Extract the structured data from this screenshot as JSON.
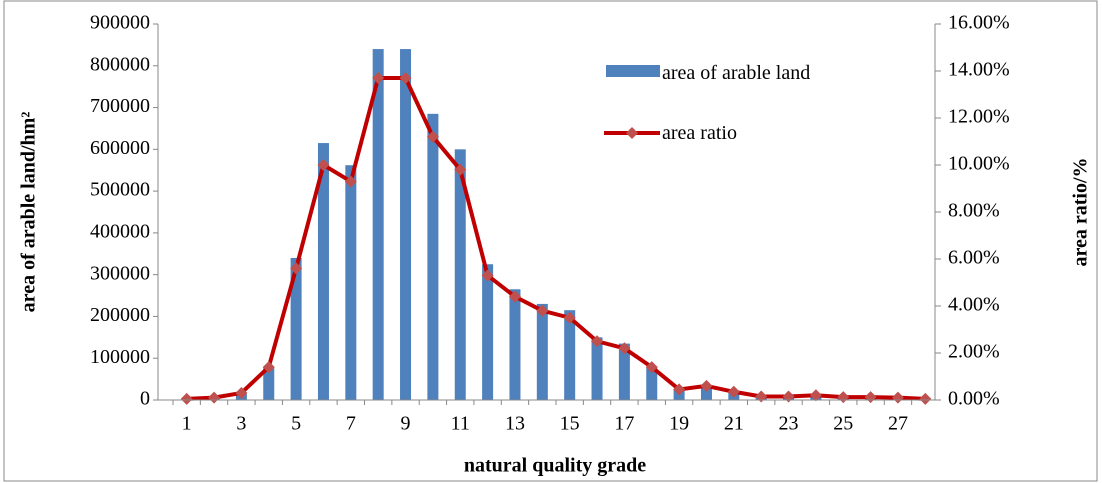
{
  "chart_data": {
    "type": "bar_line",
    "x_label": "natural quality grade",
    "y_label": "area of arable land/hm²",
    "y2_label": "area ratio/%",
    "categories": [
      "1",
      null,
      "3",
      null,
      "5",
      null,
      "7",
      null,
      "9",
      null,
      "11",
      null,
      "13",
      null,
      "15",
      null,
      "17",
      null,
      "19",
      null,
      "21",
      null,
      "23",
      null,
      "25",
      null,
      "27",
      null
    ],
    "series": [
      {
        "name": "area of arable land",
        "type": "bar",
        "color": "#4f81bd",
        "values": [
          2000,
          5000,
          15000,
          80000,
          340000,
          615000,
          562000,
          840000,
          840000,
          685000,
          600000,
          325000,
          265000,
          230000,
          215000,
          150000,
          135000,
          80000,
          25000,
          35000,
          20000,
          10000,
          10000,
          12000,
          8000,
          8000,
          6000,
          2000
        ]
      },
      {
        "name": "area ratio",
        "type": "line",
        "axis": "y2",
        "color": "#c00000",
        "marker_color": "#c0504d",
        "values": [
          0.05,
          0.1,
          0.3,
          1.4,
          5.6,
          10.0,
          9.3,
          13.7,
          13.7,
          11.2,
          9.8,
          5.3,
          4.4,
          3.8,
          3.5,
          2.5,
          2.2,
          1.4,
          0.45,
          0.6,
          0.35,
          0.15,
          0.15,
          0.2,
          0.12,
          0.12,
          0.1,
          0.05
        ]
      }
    ],
    "ylim": [
      0,
      900000
    ],
    "yticks": [
      0,
      100000,
      200000,
      300000,
      400000,
      500000,
      600000,
      700000,
      800000,
      900000
    ],
    "y2lim": [
      0,
      16
    ],
    "y2ticks": [
      {
        "value": 0,
        "label": "0.00%"
      },
      {
        "value": 2,
        "label": "2.00%"
      },
      {
        "value": 4,
        "label": "4.00%"
      },
      {
        "value": 6,
        "label": "6.00%"
      },
      {
        "value": 8,
        "label": "8.00%"
      },
      {
        "value": 10,
        "label": "10.00%"
      },
      {
        "value": 12,
        "label": "12.00%"
      },
      {
        "value": 14,
        "label": "14.00%"
      },
      {
        "value": 16,
        "label": "16.00%"
      }
    ],
    "grid": false
  }
}
